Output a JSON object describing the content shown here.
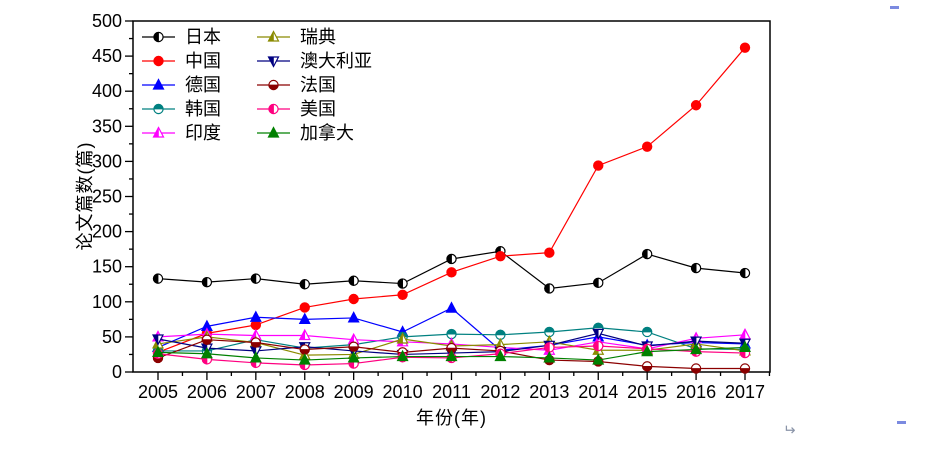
{
  "chart_data": {
    "type": "line",
    "title": "",
    "xlabel": "年份(年)",
    "ylabel": "论文篇数(篇)",
    "x": [
      2005,
      2006,
      2007,
      2008,
      2009,
      2010,
      2011,
      2012,
      2013,
      2014,
      2015,
      2016,
      2017
    ],
    "ylim": [
      0,
      500
    ],
    "ytick_step": 50,
    "ytick_minor_step": 25,
    "grid": "off",
    "legend_position": "top-left inside plot, 2 columns",
    "series": [
      {
        "id": "japan",
        "name": "日本",
        "color": "#000000",
        "marker": "circle-left",
        "values": [
          133,
          128,
          133,
          125,
          130,
          126,
          161,
          172,
          119,
          127,
          168,
          148,
          141
        ]
      },
      {
        "id": "china",
        "name": "中国",
        "color": "#ff0000",
        "marker": "circle-full",
        "values": [
          28,
          55,
          67,
          92,
          104,
          110,
          142,
          165,
          170,
          294,
          321,
          380,
          462
        ]
      },
      {
        "id": "germany",
        "name": "德国",
        "color": "#0000ff",
        "marker": "triangle-up-full",
        "values": [
          35,
          65,
          78,
          75,
          77,
          57,
          91,
          31,
          38,
          50,
          38,
          42,
          40
        ]
      },
      {
        "id": "korea",
        "name": "韩国",
        "color": "#008080",
        "marker": "circle-top",
        "values": [
          30,
          30,
          46,
          34,
          39,
          50,
          54,
          53,
          57,
          63,
          57,
          33,
          32
        ]
      },
      {
        "id": "india",
        "name": "印度",
        "color": "#ff00ff",
        "marker": "triangle-up-left",
        "values": [
          50,
          54,
          52,
          52,
          46,
          43,
          40,
          35,
          31,
          43,
          33,
          48,
          53
        ]
      },
      {
        "id": "sweden",
        "name": "瑞典",
        "color": "#8b8b00",
        "marker": "triangle-up-left",
        "values": [
          40,
          50,
          42,
          24,
          25,
          47,
          37,
          39,
          43,
          31,
          31,
          40,
          30
        ]
      },
      {
        "id": "australia",
        "name": "澳大利亚",
        "color": "#000080",
        "marker": "triangle-down-left",
        "values": [
          47,
          34,
          30,
          36,
          30,
          25,
          27,
          29,
          38,
          55,
          37,
          44,
          41
        ]
      },
      {
        "id": "france",
        "name": "法国",
        "color": "#8b0000",
        "marker": "circle-bottom",
        "values": [
          20,
          46,
          42,
          32,
          36,
          28,
          34,
          30,
          17,
          15,
          8,
          5,
          5
        ]
      },
      {
        "id": "usa",
        "name": "美国",
        "color": "#ff0080",
        "marker": "circle-left",
        "values": [
          26,
          18,
          13,
          10,
          12,
          21,
          20,
          26,
          35,
          37,
          33,
          29,
          27
        ]
      },
      {
        "id": "canada",
        "name": "加拿大",
        "color": "#008000",
        "marker": "triangle-up-full",
        "values": [
          28,
          26,
          20,
          17,
          20,
          22,
          22,
          22,
          20,
          17,
          29,
          32,
          35
        ]
      }
    ]
  },
  "artifacts": {
    "paragraph_mark": "↵"
  }
}
